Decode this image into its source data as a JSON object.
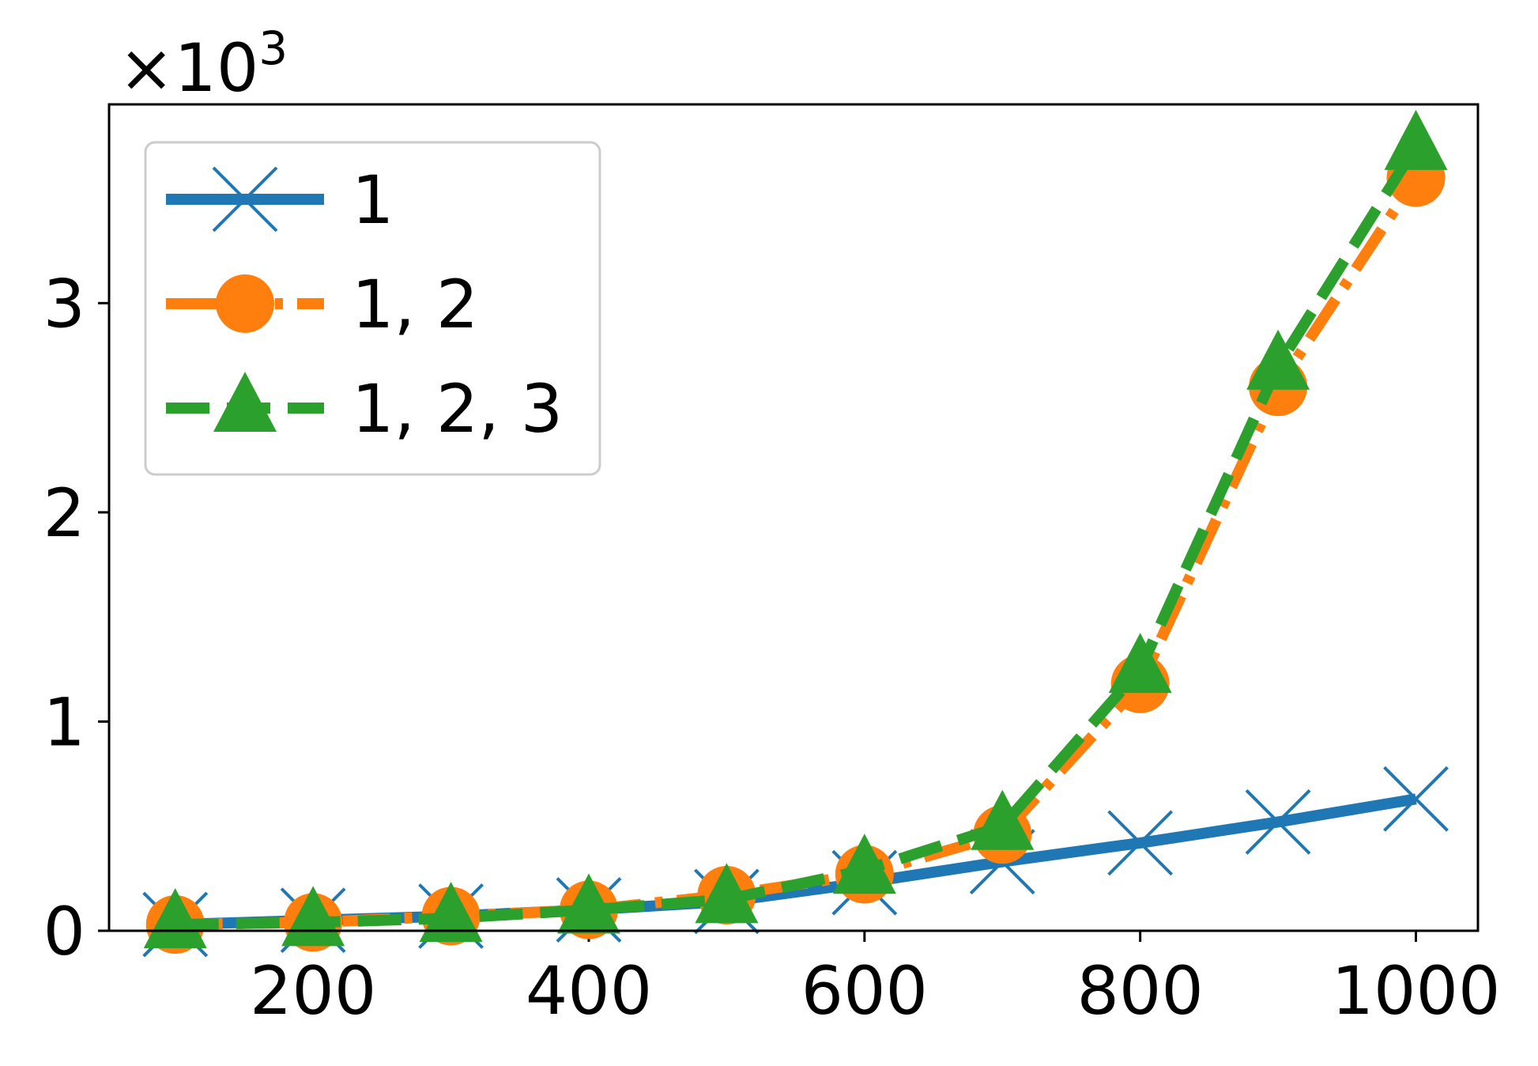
{
  "chart_data": {
    "type": "line",
    "title": "",
    "xlabel": "",
    "ylabel": "",
    "y_scale_label": "×10",
    "y_scale_exponent": "3",
    "x": [
      100,
      200,
      300,
      400,
      500,
      600,
      700,
      800,
      900,
      1000
    ],
    "xlim": [
      52,
      1045
    ],
    "ylim": [
      0,
      3.95
    ],
    "xticks": [
      200,
      400,
      600,
      800,
      1000
    ],
    "xtick_labels": [
      "200",
      "400",
      "600",
      "800",
      "1000"
    ],
    "yticks": [
      0,
      1,
      2,
      3
    ],
    "ytick_labels": [
      "0",
      "1",
      "2",
      "3"
    ],
    "grid": false,
    "legend_position": "upper-left",
    "series": [
      {
        "name": "1",
        "color": "#1f77b4",
        "line_style": "solid",
        "marker": "x",
        "values": [
          0.03,
          0.05,
          0.07,
          0.1,
          0.14,
          0.23,
          0.33,
          0.42,
          0.52,
          0.63
        ]
      },
      {
        "name": "1, 2",
        "color": "#ff7f0e",
        "line_style": "dash-dot",
        "marker": "circle",
        "values": [
          0.03,
          0.04,
          0.07,
          0.1,
          0.17,
          0.27,
          0.46,
          1.18,
          2.6,
          3.6
        ]
      },
      {
        "name": "1, 2, 3",
        "color": "#2ca02c",
        "line_style": "dashed",
        "marker": "triangle",
        "values": [
          0.03,
          0.04,
          0.06,
          0.1,
          0.15,
          0.29,
          0.5,
          1.25,
          2.7,
          3.75
        ]
      }
    ]
  }
}
